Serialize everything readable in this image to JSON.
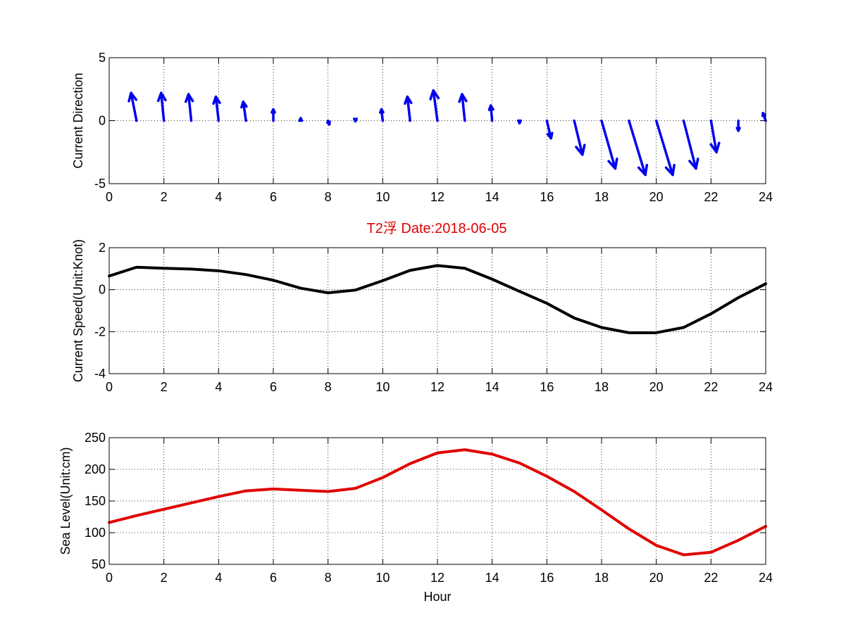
{
  "figure": {
    "title": "T2浮    Date:2018-06-05",
    "title_color": "#e00000"
  },
  "chart_data": [
    {
      "type": "quiver",
      "ylabel": "Current Direction",
      "xlabel": "",
      "xlim": [
        0,
        24
      ],
      "ylim": [
        -5,
        5
      ],
      "xticks": [
        0,
        2,
        4,
        6,
        8,
        10,
        12,
        14,
        16,
        18,
        20,
        22,
        24
      ],
      "yticks": [
        -5,
        0,
        5
      ],
      "grid": true,
      "color": "#0000ee",
      "x": [
        1,
        2,
        3,
        4,
        5,
        6,
        7,
        8,
        9,
        10,
        11,
        12,
        13,
        14,
        15,
        16,
        17,
        18,
        19,
        20,
        21,
        22,
        23,
        24
      ],
      "u": [
        -0.2,
        -0.1,
        -0.1,
        -0.1,
        -0.1,
        0,
        0,
        0.05,
        0,
        -0.05,
        -0.1,
        -0.15,
        -0.1,
        -0.05,
        0,
        0.15,
        0.3,
        0.5,
        0.6,
        0.6,
        0.45,
        0.2,
        0,
        -0.1
      ],
      "v": [
        2.2,
        2.2,
        2.1,
        1.9,
        1.5,
        0.9,
        0.2,
        -0.3,
        -0.05,
        0.9,
        1.9,
        2.4,
        2.1,
        1.2,
        -0.2,
        -1.4,
        -2.7,
        -3.8,
        -4.3,
        -4.3,
        -3.8,
        -2.5,
        -0.8,
        0.6
      ]
    },
    {
      "type": "line",
      "title": "T2浮    Date:2018-06-05",
      "ylabel": "Current Speed(Unit:Knot)",
      "xlabel": "",
      "xlim": [
        0,
        24
      ],
      "ylim": [
        -4,
        2
      ],
      "xticks": [
        0,
        2,
        4,
        6,
        8,
        10,
        12,
        14,
        16,
        18,
        20,
        22,
        24
      ],
      "yticks": [
        -4,
        -2,
        0,
        2
      ],
      "grid": true,
      "x": [
        0,
        1,
        2,
        3,
        4,
        5,
        6,
        7,
        8,
        9,
        10,
        11,
        12,
        13,
        14,
        15,
        16,
        17,
        18,
        19,
        20,
        21,
        22,
        23,
        24
      ],
      "series": [
        {
          "color": "#000000",
          "values": [
            0.65,
            1.07,
            1.02,
            0.98,
            0.9,
            0.72,
            0.45,
            0.07,
            -0.15,
            -0.02,
            0.43,
            0.92,
            1.15,
            1.02,
            0.5,
            -0.08,
            -0.65,
            -1.35,
            -1.8,
            -2.05,
            -2.05,
            -1.8,
            -1.15,
            -0.38,
            0.28
          ]
        }
      ]
    },
    {
      "type": "line",
      "ylabel": "Sea Level(Unit:cm)",
      "xlabel": "Hour",
      "xlim": [
        0,
        24
      ],
      "ylim": [
        50,
        250
      ],
      "xticks": [
        0,
        2,
        4,
        6,
        8,
        10,
        12,
        14,
        16,
        18,
        20,
        22,
        24
      ],
      "yticks": [
        50,
        100,
        150,
        200,
        250
      ],
      "grid": true,
      "x": [
        0,
        1,
        2,
        3,
        4,
        5,
        6,
        7,
        8,
        9,
        10,
        11,
        12,
        13,
        14,
        15,
        16,
        17,
        18,
        19,
        20,
        21,
        22,
        23,
        24
      ],
      "series": [
        {
          "color": "#e00000",
          "values": [
            116,
            127,
            137,
            147,
            157,
            166,
            169,
            167,
            165,
            170,
            187,
            209,
            226,
            231,
            224,
            210,
            189,
            165,
            136,
            106,
            80,
            65,
            69,
            88,
            110
          ]
        }
      ]
    }
  ]
}
